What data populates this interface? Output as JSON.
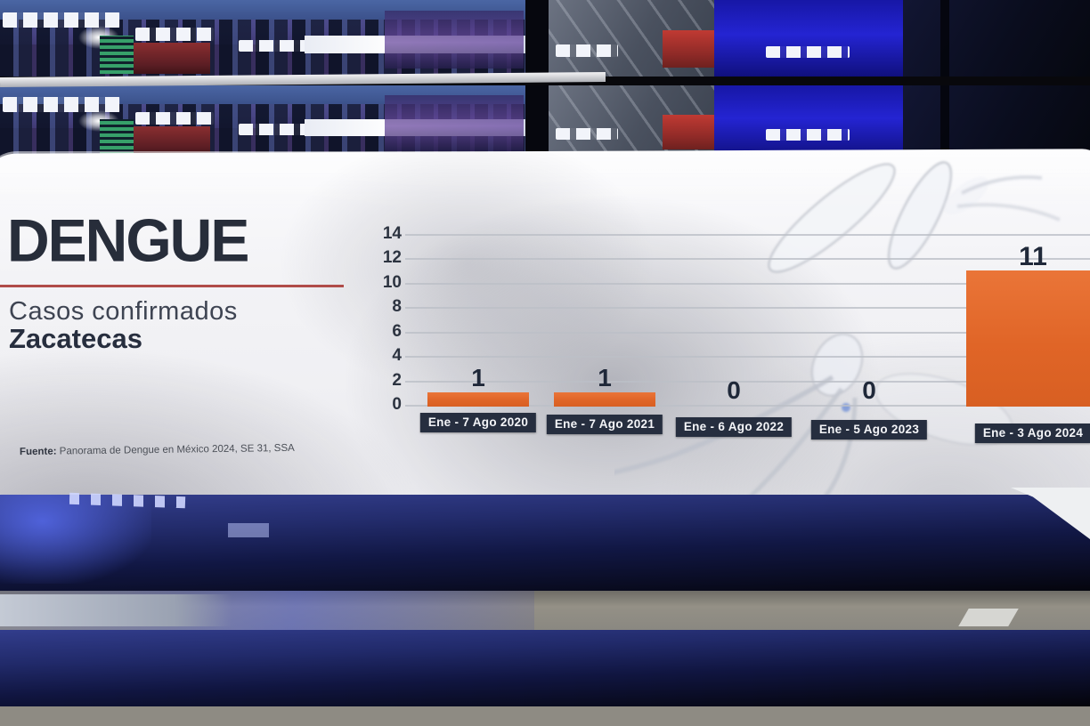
{
  "header": {
    "title": "DENGUE",
    "subtitle": "Casos confirmados",
    "region": "Zacatecas"
  },
  "source": {
    "label": "Fuente:",
    "text": " Panorama de Dengue en México 2024, SE 31, SSA"
  },
  "chart_data": {
    "type": "bar",
    "title": "DENGUE — Casos confirmados — Zacatecas",
    "categories": [
      "Ene - 7 Ago 2020",
      "Ene - 7 Ago 2021",
      "Ene - 6 Ago 2022",
      "Ene - 5 Ago 2023",
      "Ene - 3 Ago 2024"
    ],
    "values": [
      1,
      1,
      0,
      0,
      11
    ],
    "ylim": [
      0,
      14
    ],
    "yticks": [
      0,
      2,
      4,
      6,
      8,
      10,
      12,
      14
    ],
    "grid": true,
    "legend": "none",
    "bar_color": "#e06527",
    "value_label_color": "#1f2839",
    "category_box_color": "#262e3f"
  },
  "colors": {
    "accent_orange": "#e06527",
    "title_navy": "#272d3a",
    "underline_red": "#b04c49",
    "label_box_navy": "#262e3f",
    "studio_blue": "#232c6c"
  }
}
